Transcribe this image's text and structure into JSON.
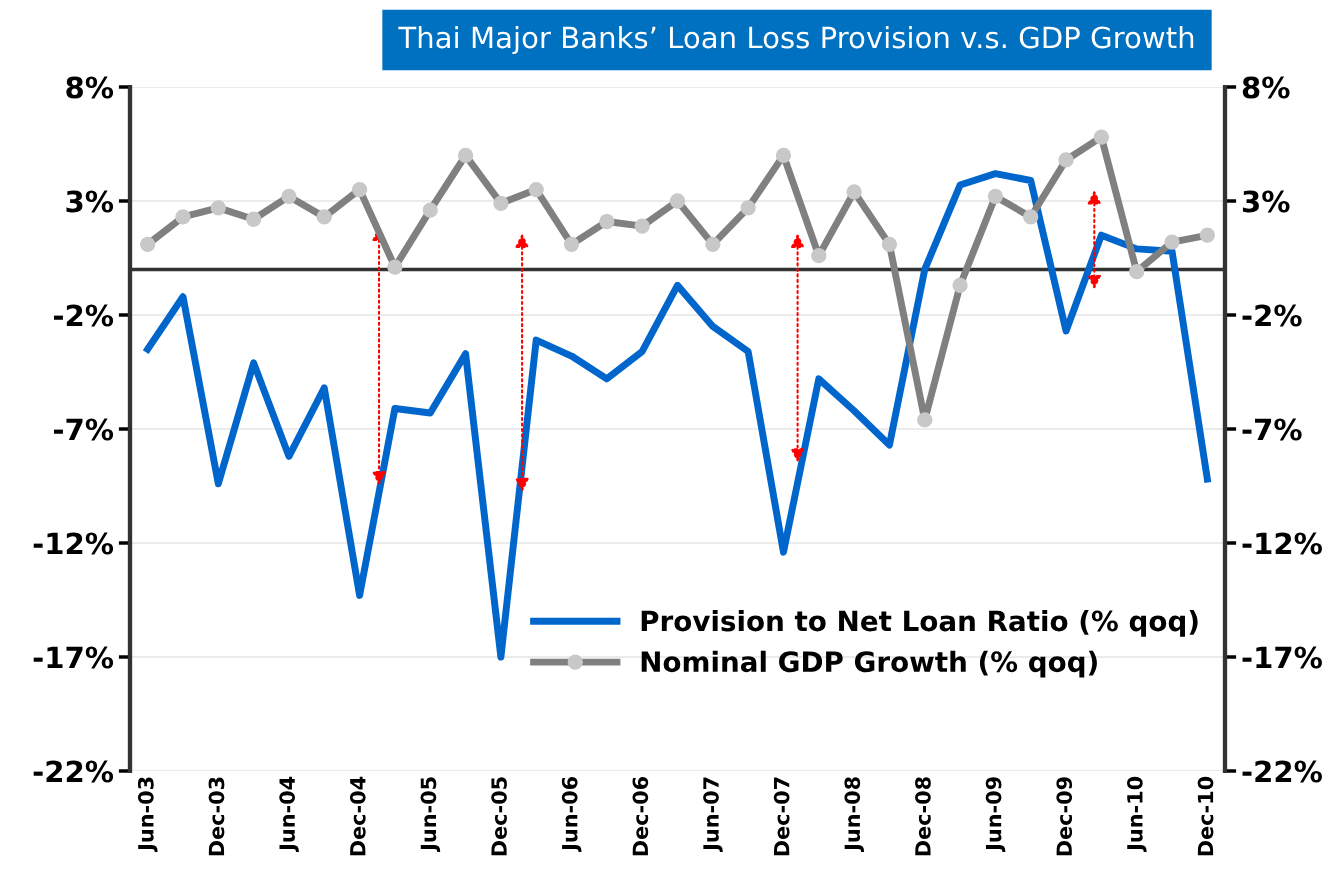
{
  "chart_data": {
    "type": "line",
    "title": "Thai Major Banks’ Loan Loss Provision v.s. GDP Growth",
    "categories": [
      "Jun-03",
      null,
      "Dec-03",
      null,
      "Jun-04",
      null,
      "Dec-04",
      null,
      "Jun-05",
      null,
      "Dec-05",
      null,
      "Jun-06",
      null,
      "Dec-06",
      null,
      "Jun-07",
      null,
      "Dec-07",
      null,
      "Jun-08",
      null,
      "Dec-08",
      null,
      "Jun-09",
      null,
      "Dec-09",
      null,
      "Jun-10",
      null,
      "Dec-10"
    ],
    "series": [
      {
        "name": "Provision to Net Loan Ratio (% qoq)",
        "color": "#0066cc",
        "marker": "none",
        "values": [
          -3.5,
          -1.2,
          -9.4,
          -4.1,
          -8.2,
          -5.2,
          -14.3,
          -6.1,
          -6.3,
          -3.7,
          -17.0,
          -3.1,
          -3.8,
          -4.8,
          -3.6,
          -0.7,
          -2.5,
          -3.6,
          -12.4,
          -4.8,
          -6.2,
          -7.7,
          0.0,
          3.7,
          4.2,
          3.9,
          -2.7,
          1.5,
          0.9,
          0.8,
          -9.2
        ]
      },
      {
        "name": "Nominal GDP Growth (% qoq)",
        "color": "#808080",
        "marker": "circle",
        "axis": "y2",
        "values": [
          1.1,
          2.3,
          2.7,
          2.2,
          3.2,
          2.3,
          3.5,
          0.1,
          2.6,
          5.0,
          2.9,
          3.5,
          1.1,
          2.1,
          1.9,
          3.0,
          1.1,
          2.7,
          5.0,
          0.6,
          3.4,
          1.1,
          -6.6,
          -0.7,
          3.2,
          2.3,
          4.8,
          5.8,
          -0.1,
          1.2,
          1.5
        ]
      }
    ],
    "ylim": [
      -22,
      8
    ],
    "yticks": [
      {
        "value": 8,
        "label": "8%"
      },
      {
        "value": 3,
        "label": "3%"
      },
      {
        "value": -2,
        "label": "-2%"
      },
      {
        "value": -7,
        "label": "-7%"
      },
      {
        "value": -12,
        "label": "-12%"
      },
      {
        "value": -17,
        "label": "-17%"
      },
      {
        "value": -22,
        "label": "-22%"
      }
    ],
    "y2lim": [
      -22,
      8
    ],
    "y2ticks": [
      {
        "value": 8,
        "label": "8%"
      },
      {
        "value": 3,
        "label": "3%"
      },
      {
        "value": -2,
        "label": "-2%"
      },
      {
        "value": -7,
        "label": "-7%"
      },
      {
        "value": -12,
        "label": "-12%"
      },
      {
        "value": -17,
        "label": "-17%"
      },
      {
        "value": -22,
        "label": "-22%"
      }
    ],
    "ref_lines": [
      {
        "axis": "y",
        "value": 0,
        "color": "#333333"
      }
    ],
    "grid": "y",
    "legend": "bottom right",
    "line_style": "solid"
  }
}
